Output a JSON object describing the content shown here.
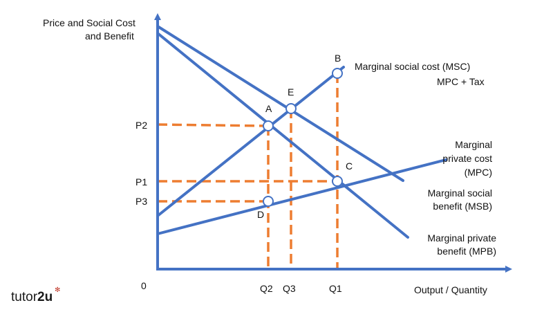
{
  "diagram": {
    "y_axis_label_line1": "Price and Social Cost",
    "y_axis_label_line2": "and Benefit",
    "x_axis_label": "Output / Quantity",
    "origin_label": "0",
    "price_labels": {
      "p2": "P2",
      "p1": "P1",
      "p3": "P3"
    },
    "quantity_labels": {
      "q2": "Q2",
      "q3": "Q3",
      "q1": "Q1"
    },
    "points": {
      "a": "A",
      "b": "B",
      "c": "C",
      "d": "D",
      "e": "E"
    },
    "curves": {
      "msc": "Marginal social cost (MSC)",
      "msc_note": "MPC + Tax",
      "mpc_line1": "Marginal",
      "mpc_line2": "private cost",
      "mpc_line3": "(MPC)",
      "msb_line1": "Marginal social",
      "msb_line2": "benefit (MSB)",
      "mpb_line1": "Marginal private",
      "mpb_line2": "benefit (MPB)"
    },
    "colors": {
      "curves": "#4472c4",
      "guides": "#ed7d31"
    }
  },
  "brand": {
    "logo_text_light": "tutor",
    "logo_text_bold": "2u",
    "logo_mark": "✻"
  }
}
